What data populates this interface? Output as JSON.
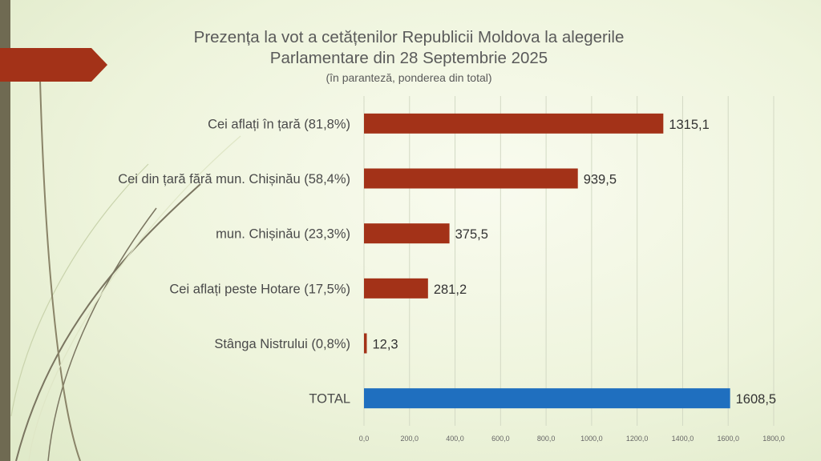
{
  "title": {
    "line1": "Prezența la vot a cetățenilor Republicii Moldova la alegerile",
    "line2": "Parlamentare din 28 Septembrie 2025",
    "subtitle": "(în paranteză, ponderea din total)"
  },
  "colors": {
    "bar": "#a33218",
    "total_bar": "#1f6fbf",
    "accent_tab": "#a33218",
    "text": "#4a4a4a",
    "grid": "#d3d9c4"
  },
  "chart_data": {
    "type": "bar",
    "orientation": "horizontal",
    "title": "Prezența la vot a cetățenilor Republicii Moldova la alegerile Parlamentare din 28 Septembrie 2025",
    "categories": [
      "Cei aflați în țară (81,8%)",
      "Cei din țară fără mun. Chișinău (58,4%)",
      "mun. Chișinău (23,3%)",
      "Cei aflați peste Hotare (17,5%)",
      "Stânga Nistrului (0,8%)",
      "TOTAL"
    ],
    "values": [
      1315.1,
      939.5,
      375.5,
      281.2,
      12.3,
      1608.5
    ],
    "value_labels": [
      "1315,1",
      "939,5",
      "375,5",
      "281,2",
      "12,3",
      "1608,5"
    ],
    "highlight_category": "TOTAL",
    "xlim": [
      0,
      1800
    ],
    "xticks": [
      0,
      200,
      400,
      600,
      800,
      1000,
      1200,
      1400,
      1600,
      1800
    ],
    "xtick_labels": [
      "0,0",
      "200,0",
      "400,0",
      "600,0",
      "800,0",
      "1000,0",
      "1200,0",
      "1400,0",
      "1600,0",
      "1800,0"
    ],
    "grid": true,
    "legend": "none"
  }
}
